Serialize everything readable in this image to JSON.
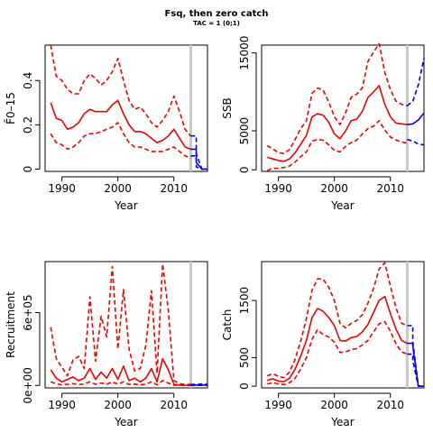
{
  "page": {
    "title": "Fsq, then zero catch",
    "subtitle": "TAC = 1 (0;1)"
  },
  "colors": {
    "historic": "#ee0000",
    "projection": "#0000ee",
    "refline": "#c8c8c8",
    "axis": "#000000"
  },
  "chart_data": [
    {
      "type": "line",
      "ylabel": "F̄0–15",
      "xlabel": "Year",
      "xlim": [
        1987,
        2016
      ],
      "ylim": [
        -0.01,
        0.56
      ],
      "xticks": [
        1990,
        2000,
        2010
      ],
      "yticks": [
        0,
        0.2,
        0.4
      ],
      "ytick_labels": [
        "0",
        "0.2",
        "0.4"
      ],
      "vline": 2013,
      "series": [
        {
          "role": "median",
          "dash": false,
          "color": "historic",
          "x": [
            1988,
            1989,
            1990,
            1991,
            1992,
            1993,
            1994,
            1995,
            1996,
            1997,
            1998,
            1999,
            2000,
            2001,
            2002,
            2003,
            2004,
            2005,
            2006,
            2007,
            2008,
            2009,
            2010,
            2011,
            2012,
            2013
          ],
          "y": [
            0.3,
            0.23,
            0.22,
            0.18,
            0.19,
            0.21,
            0.25,
            0.27,
            0.26,
            0.26,
            0.26,
            0.29,
            0.31,
            0.25,
            0.2,
            0.17,
            0.17,
            0.16,
            0.14,
            0.12,
            0.13,
            0.15,
            0.18,
            0.14,
            0.1,
            0.09
          ]
        },
        {
          "role": "upper",
          "dash": true,
          "color": "historic",
          "x": [
            1988,
            1989,
            1990,
            1991,
            1992,
            1993,
            1994,
            1995,
            1996,
            1997,
            1998,
            1999,
            2000,
            2001,
            2002,
            2003,
            2004,
            2005,
            2006,
            2007,
            2008,
            2009,
            2010,
            2011,
            2012,
            2013
          ],
          "y": [
            0.56,
            0.42,
            0.4,
            0.36,
            0.34,
            0.34,
            0.4,
            0.43,
            0.41,
            0.38,
            0.4,
            0.44,
            0.5,
            0.4,
            0.31,
            0.27,
            0.28,
            0.25,
            0.21,
            0.19,
            0.22,
            0.26,
            0.33,
            0.26,
            0.18,
            0.15
          ]
        },
        {
          "role": "lower",
          "dash": true,
          "color": "historic",
          "x": [
            1988,
            1989,
            1990,
            1991,
            1992,
            1993,
            1994,
            1995,
            1996,
            1997,
            1998,
            1999,
            2000,
            2001,
            2002,
            2003,
            2004,
            2005,
            2006,
            2007,
            2008,
            2009,
            2010,
            2011,
            2012,
            2013
          ],
          "y": [
            0.16,
            0.12,
            0.11,
            0.09,
            0.1,
            0.12,
            0.15,
            0.16,
            0.16,
            0.17,
            0.18,
            0.19,
            0.21,
            0.16,
            0.12,
            0.1,
            0.1,
            0.09,
            0.08,
            0.08,
            0.08,
            0.09,
            0.1,
            0.08,
            0.06,
            0.05
          ]
        },
        {
          "role": "proj-upper",
          "dash": true,
          "color": "projection",
          "x": [
            2013,
            2014,
            2014,
            2015,
            2016
          ],
          "y": [
            0.15,
            0.15,
            0.07,
            0.0,
            0.0
          ]
        },
        {
          "role": "proj-median",
          "dash": false,
          "color": "projection",
          "x": [
            2013,
            2014,
            2014,
            2015,
            2016
          ],
          "y": [
            0.09,
            0.09,
            0.03,
            0.0,
            0.0
          ]
        },
        {
          "role": "proj-lower",
          "dash": true,
          "color": "projection",
          "x": [
            2013,
            2014,
            2014,
            2015,
            2016
          ],
          "y": [
            0.06,
            0.06,
            0.01,
            0.0,
            0.0
          ]
        }
      ]
    },
    {
      "type": "line",
      "ylabel": "SSB",
      "xlabel": "Year",
      "xlim": [
        1987,
        2016
      ],
      "ylim": [
        -200,
        16000
      ],
      "xticks": [
        1990,
        2000,
        2010
      ],
      "yticks": [
        0,
        5000,
        15000
      ],
      "ytick_labels": [
        "0",
        "5000",
        "15000"
      ],
      "vline": 2013,
      "series": [
        {
          "role": "median",
          "dash": false,
          "color": "historic",
          "x": [
            1988,
            1989,
            1990,
            1991,
            1992,
            1993,
            1994,
            1995,
            1996,
            1997,
            1998,
            1999,
            2000,
            2001,
            2002,
            2003,
            2004,
            2005,
            2006,
            2007,
            2008,
            2009,
            2010,
            2011,
            2012,
            2013
          ],
          "y": [
            1600,
            1400,
            1200,
            1100,
            1400,
            2200,
            3300,
            4400,
            6800,
            7200,
            7000,
            6100,
            4600,
            4000,
            5000,
            6300,
            6500,
            7500,
            9300,
            10000,
            10800,
            8400,
            6800,
            6000,
            5900,
            5800
          ]
        },
        {
          "role": "upper",
          "dash": true,
          "color": "historic",
          "x": [
            1988,
            1989,
            1990,
            1991,
            1992,
            1993,
            1994,
            1995,
            1996,
            1997,
            1998,
            1999,
            2000,
            2001,
            2002,
            2003,
            2004,
            2005,
            2006,
            2007,
            2008,
            2009,
            2010,
            2011,
            2012,
            2013
          ],
          "y": [
            3100,
            2700,
            2200,
            2100,
            2600,
            3900,
            5300,
            6300,
            9800,
            10500,
            10200,
            8700,
            6800,
            5800,
            7300,
            9300,
            9700,
            10500,
            13900,
            15100,
            16200,
            12500,
            10300,
            8800,
            8400,
            8200
          ]
        },
        {
          "role": "lower",
          "dash": true,
          "color": "historic",
          "x": [
            1988,
            1989,
            1990,
            1991,
            1992,
            1993,
            1994,
            1995,
            1996,
            1997,
            1998,
            1999,
            2000,
            2001,
            2002,
            2003,
            2004,
            2005,
            2006,
            2007,
            2008,
            2009,
            2010,
            2011,
            2012,
            2013
          ],
          "y": [
            -100,
            200,
            200,
            300,
            500,
            1000,
            1700,
            2300,
            3700,
            3900,
            3800,
            3200,
            2500,
            2300,
            3000,
            3500,
            3800,
            4600,
            5300,
            5600,
            6300,
            5100,
            4200,
            3800,
            3600,
            3400
          ]
        },
        {
          "role": "proj-upper",
          "dash": true,
          "color": "projection",
          "x": [
            2013,
            2014,
            2015,
            2016
          ],
          "y": [
            8200,
            8800,
            10900,
            14300
          ]
        },
        {
          "role": "proj-median",
          "dash": false,
          "color": "projection",
          "x": [
            2013,
            2014,
            2015,
            2016
          ],
          "y": [
            5800,
            5900,
            6400,
            7300
          ]
        },
        {
          "role": "proj-lower",
          "dash": true,
          "color": "projection",
          "x": [
            2013,
            2014,
            2015,
            2016
          ],
          "y": [
            3900,
            3700,
            3300,
            3200
          ]
        }
      ]
    },
    {
      "type": "line",
      "ylabel": "Recruitment",
      "xlabel": "Year",
      "xlim": [
        1987,
        2016
      ],
      "ylim": [
        -20000,
        1020000
      ],
      "xticks": [
        1990,
        2000,
        2010
      ],
      "yticks": [
        0,
        600000
      ],
      "ytick_labels": [
        "0e+00",
        "6e+05"
      ],
      "vline": 2013,
      "series": [
        {
          "role": "median",
          "dash": false,
          "color": "historic",
          "x": [
            1988,
            1989,
            1990,
            1991,
            1992,
            1993,
            1994,
            1995,
            1996,
            1997,
            1998,
            1999,
            2000,
            2001,
            2002,
            2003,
            2004,
            2005,
            2006,
            2007,
            2008,
            2009,
            2010,
            2011,
            2012,
            2013
          ],
          "y": [
            130000,
            60000,
            30000,
            50000,
            70000,
            40000,
            60000,
            140000,
            50000,
            110000,
            60000,
            140000,
            50000,
            160000,
            40000,
            60000,
            30000,
            60000,
            140000,
            30000,
            220000,
            130000,
            10000,
            3000,
            2000,
            2000
          ]
        },
        {
          "role": "upper",
          "dash": true,
          "color": "historic",
          "x": [
            1988,
            1989,
            1990,
            1991,
            1992,
            1993,
            1994,
            1995,
            1996,
            1997,
            1998,
            1999,
            2000,
            2001,
            2002,
            2003,
            2004,
            2005,
            2006,
            2007,
            2008,
            2009,
            2010,
            2011,
            2012,
            2013
          ],
          "y": [
            480000,
            220000,
            150000,
            80000,
            210000,
            240000,
            140000,
            730000,
            200000,
            570000,
            400000,
            980000,
            300000,
            790000,
            300000,
            120000,
            140000,
            330000,
            780000,
            100000,
            1000000,
            620000,
            40000,
            15000,
            8000,
            8000
          ]
        },
        {
          "role": "lower",
          "dash": true,
          "color": "historic",
          "x": [
            1988,
            1989,
            1990,
            1991,
            1992,
            1993,
            1994,
            1995,
            1996,
            1997,
            1998,
            1999,
            2000,
            2001,
            2002,
            2003,
            2004,
            2005,
            2006,
            2007,
            2008,
            2009,
            2010,
            2011,
            2012,
            2013
          ],
          "y": [
            30000,
            15000,
            5000,
            10000,
            15000,
            8000,
            12000,
            30000,
            10000,
            20000,
            10000,
            30000,
            10000,
            30000,
            8000,
            12000,
            5000,
            10000,
            30000,
            5000,
            40000,
            20000,
            2000,
            500,
            300,
            300
          ]
        },
        {
          "role": "proj-upper",
          "dash": true,
          "color": "projection",
          "x": [
            2013,
            2014,
            2015,
            2016
          ],
          "y": [
            8000,
            10000,
            12000,
            12000
          ]
        },
        {
          "role": "proj-median",
          "dash": false,
          "color": "projection",
          "x": [
            2013,
            2014,
            2015,
            2016
          ],
          "y": [
            2000,
            3000,
            4000,
            4000
          ]
        },
        {
          "role": "proj-lower",
          "dash": true,
          "color": "projection",
          "x": [
            2013,
            2014,
            2015,
            2016
          ],
          "y": [
            300,
            500,
            800,
            800
          ]
        }
      ]
    },
    {
      "type": "line",
      "ylabel": "Catch",
      "xlabel": "Year",
      "xlim": [
        1987,
        2016
      ],
      "ylim": [
        -30,
        2180
      ],
      "xticks": [
        1990,
        2000,
        2010
      ],
      "yticks": [
        0,
        500,
        1500
      ],
      "ytick_labels": [
        "0",
        "500",
        "1500"
      ],
      "vline": 2013,
      "series": [
        {
          "role": "median",
          "dash": false,
          "color": "historic",
          "x": [
            1988,
            1989,
            1990,
            1991,
            1992,
            1993,
            1994,
            1995,
            1996,
            1997,
            1998,
            1999,
            2000,
            2001,
            2002,
            2003,
            2004,
            2005,
            2006,
            2007,
            2008,
            2009,
            2010,
            2011,
            2012,
            2013
          ],
          "y": [
            100,
            130,
            90,
            80,
            140,
            300,
            530,
            800,
            1200,
            1360,
            1310,
            1200,
            1060,
            800,
            790,
            850,
            870,
            950,
            1080,
            1290,
            1500,
            1570,
            1270,
            1000,
            800,
            750
          ]
        },
        {
          "role": "upper",
          "dash": true,
          "color": "historic",
          "x": [
            1988,
            1989,
            1990,
            1991,
            1992,
            1993,
            1994,
            1995,
            1996,
            1997,
            1998,
            1999,
            2000,
            2001,
            2002,
            2003,
            2004,
            2005,
            2006,
            2007,
            2008,
            2009,
            2010,
            2011,
            2012,
            2013
          ],
          "y": [
            180,
            220,
            170,
            150,
            250,
            470,
            790,
            1180,
            1680,
            1880,
            1870,
            1730,
            1500,
            1100,
            1020,
            1100,
            1150,
            1250,
            1450,
            1710,
            2050,
            2160,
            1750,
            1370,
            1100,
            1060
          ]
        },
        {
          "role": "lower",
          "dash": true,
          "color": "historic",
          "x": [
            1988,
            1989,
            1990,
            1991,
            1992,
            1993,
            1994,
            1995,
            1996,
            1997,
            1998,
            1999,
            2000,
            2001,
            2002,
            2003,
            2004,
            2005,
            2006,
            2007,
            2008,
            2009,
            2010,
            2011,
            2012,
            2013
          ],
          "y": [
            40,
            60,
            40,
            30,
            60,
            140,
            300,
            500,
            820,
            990,
            900,
            860,
            770,
            590,
            600,
            640,
            660,
            720,
            800,
            950,
            1090,
            1130,
            960,
            740,
            600,
            560
          ]
        },
        {
          "role": "proj-upper",
          "dash": true,
          "color": "projection",
          "x": [
            2013,
            2014,
            2014,
            2015,
            2016
          ],
          "y": [
            1060,
            1060,
            780,
            0,
            0
          ]
        },
        {
          "role": "proj-median",
          "dash": false,
          "color": "projection",
          "x": [
            2013,
            2014,
            2014,
            2015,
            2016
          ],
          "y": [
            750,
            750,
            700,
            0,
            0
          ]
        },
        {
          "role": "proj-lower",
          "dash": true,
          "color": "projection",
          "x": [
            2013,
            2014,
            2014,
            2015,
            2016
          ],
          "y": [
            560,
            560,
            440,
            0,
            0
          ]
        }
      ]
    }
  ]
}
